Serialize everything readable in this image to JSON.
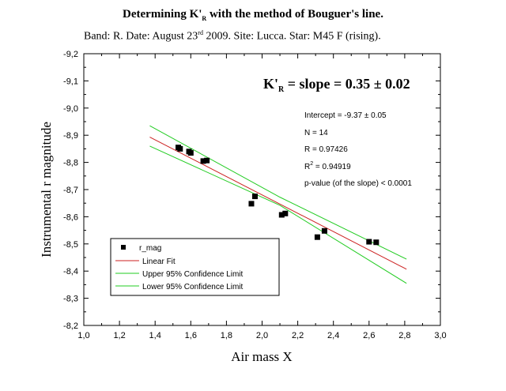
{
  "title": {
    "prefix": "Determining K'",
    "sub": "R",
    "suffix": " with the method of Bouguer's line."
  },
  "subtitle": {
    "part1": "Band: R. Date: August 23",
    "sup": "rd",
    "part2": " 2009. Site: Lucca. Star: M45 F (rising)."
  },
  "annotations": {
    "slope": {
      "prefix": "K'",
      "sub": "R",
      "suffix": " = slope = 0.35 ± 0.02"
    },
    "intercept": "Intercept = -9.37 ± 0.05",
    "n": "N = 14",
    "r": "R = 0.97426",
    "r2": {
      "prefix": "R",
      "sup": "2",
      "suffix": " = 0.94919"
    },
    "pvalue": "p-value (of the slope) < 0.0001"
  },
  "chart_data": {
    "type": "scatter",
    "xlabel": "Air mass  X",
    "ylabel": "Instrumental  r  magnitude",
    "xlim": [
      1.0,
      3.0
    ],
    "ylim": [
      -8.2,
      -9.2
    ],
    "x_ticks": [
      "1,0",
      "1,2",
      "1,4",
      "1,6",
      "1,8",
      "2,0",
      "2,2",
      "2,4",
      "2,6",
      "2,8",
      "3,0"
    ],
    "y_ticks": [
      "-9,2",
      "-9,1",
      "-9,0",
      "-8,9",
      "-8,8",
      "-8,7",
      "-8,6",
      "-8,5",
      "-8,4",
      "-8,3",
      "-8,2"
    ],
    "y_reversed": true,
    "grid": false,
    "legend_position": "bottom-left",
    "series": [
      {
        "name": "r_mag",
        "kind": "points",
        "color": "#000000",
        "x": [
          1.53,
          1.54,
          1.59,
          1.6,
          1.67,
          1.69,
          1.94,
          1.96,
          2.11,
          2.13,
          2.31,
          2.35,
          2.6,
          2.64
        ],
        "y": [
          -8.855,
          -8.85,
          -8.84,
          -8.835,
          -8.805,
          -8.807,
          -8.648,
          -8.675,
          -8.607,
          -8.612,
          -8.525,
          -8.548,
          -8.508,
          -8.506
        ]
      },
      {
        "name": "Linear Fit",
        "kind": "line",
        "color": "#cc2222",
        "x": [
          1.37,
          2.81
        ],
        "y": [
          -8.893,
          -8.407
        ]
      },
      {
        "name": "Upper 95% Confidence Limit",
        "kind": "line",
        "color": "#22cc22",
        "x": [
          1.37,
          2.1,
          2.81
        ],
        "y": [
          -8.935,
          -8.672,
          -8.444
        ]
      },
      {
        "name": "Lower 95% Confidence Limit",
        "kind": "line",
        "color": "#22cc22",
        "x": [
          1.37,
          2.1,
          2.81
        ],
        "y": [
          -8.86,
          -8.642,
          -8.355
        ]
      }
    ]
  }
}
